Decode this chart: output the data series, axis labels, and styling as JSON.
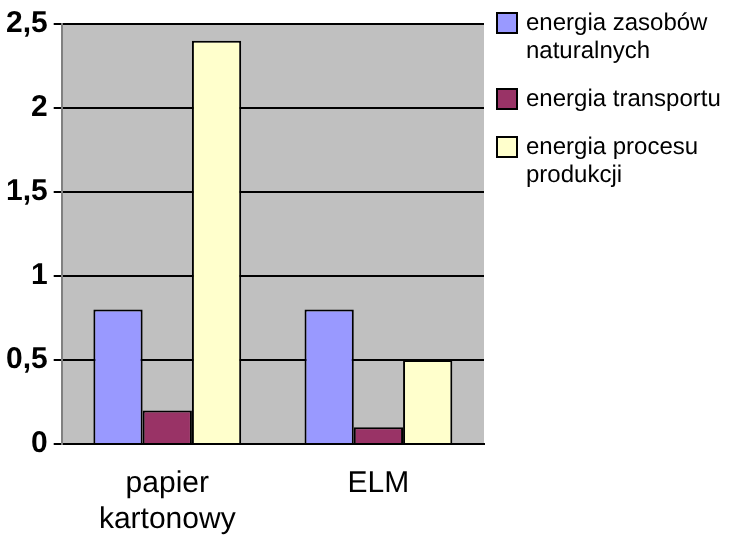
{
  "chart_data": {
    "type": "bar",
    "categories": [
      "papier kartonowy",
      "ELM"
    ],
    "series": [
      {
        "name": "energia zasobów naturalnych",
        "color": "#9999ff",
        "values": [
          0.8,
          0.8
        ]
      },
      {
        "name": "energia transportu",
        "color": "#993366",
        "values": [
          0.2,
          0.1
        ]
      },
      {
        "name": "energia procesu produkcji",
        "color": "#ffffcc",
        "values": [
          2.4,
          0.5
        ]
      }
    ],
    "ylim": [
      0,
      2.5
    ],
    "yticks": [
      0,
      {
        "value": 0.5,
        "label": "0,5"
      },
      1,
      {
        "value": 1.5,
        "label": "1,5"
      },
      2,
      {
        "value": 2.5,
        "label": "2,5"
      }
    ],
    "grid": "y",
    "legend": "right"
  }
}
